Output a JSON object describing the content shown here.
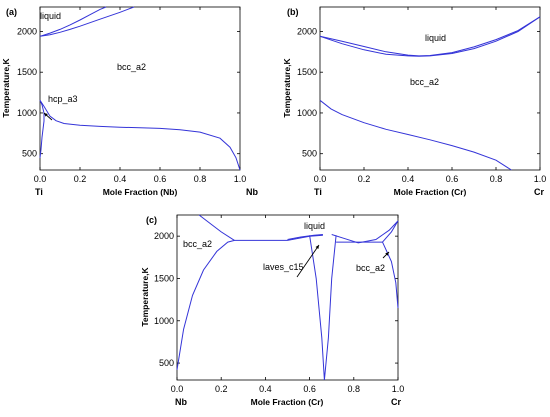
{
  "chart_data": [
    {
      "panel": "(a)",
      "type": "line",
      "xlabel": "Mole Fraction (Nb)",
      "ylabel": "Temperature,K",
      "xlim": [
        0,
        1.0
      ],
      "ylim": [
        300,
        2300
      ],
      "xticks": [
        "0.0",
        "0.2",
        "0.4",
        "0.6",
        "0.8",
        "1.0"
      ],
      "yticks": [
        "500",
        "1000",
        "1500",
        "2000"
      ],
      "left_element": "Ti",
      "right_element": "Nb",
      "regions": [
        "liquid",
        "bcc_a2",
        "hcp_a3"
      ],
      "series": [
        {
          "values": [
            [
              0,
              1940
            ],
            [
              0.05,
              1980
            ],
            [
              0.1,
              2025
            ],
            [
              0.15,
              2080
            ],
            [
              0.2,
              2140
            ],
            [
              0.25,
              2205
            ],
            [
              0.3,
              2270
            ],
            [
              0.33,
              2300
            ]
          ]
        },
        {
          "values": [
            [
              0,
              1940
            ],
            [
              0.05,
              1960
            ],
            [
              0.1,
              1990
            ],
            [
              0.15,
              2025
            ],
            [
              0.2,
              2065
            ],
            [
              0.3,
              2150
            ],
            [
              0.4,
              2235
            ],
            [
              0.47,
              2300
            ]
          ]
        },
        {
          "values": [
            [
              0,
              1155
            ],
            [
              0.02,
              1080
            ],
            [
              0.05,
              960
            ],
            [
              0.08,
              905
            ],
            [
              0.12,
              870
            ],
            [
              0.2,
              850
            ],
            [
              0.3,
              835
            ],
            [
              0.4,
              825
            ],
            [
              0.5,
              818
            ],
            [
              0.6,
              810
            ],
            [
              0.7,
              795
            ],
            [
              0.8,
              765
            ],
            [
              0.9,
              690
            ],
            [
              0.95,
              580
            ],
            [
              0.98,
              450
            ],
            [
              1.0,
              300
            ]
          ]
        },
        {
          "values": [
            [
              0,
              1155
            ],
            [
              0.01,
              1100
            ],
            [
              0.02,
              1000
            ],
            [
              0.02,
              900
            ],
            [
              0.01,
              700
            ],
            [
              0.005,
              550
            ],
            [
              0,
              450
            ]
          ]
        }
      ]
    },
    {
      "panel": "(b)",
      "type": "line",
      "xlabel": "Mole Fraction (Cr)",
      "ylabel": "Temperature,K",
      "xlim": [
        0,
        1.0
      ],
      "ylim": [
        300,
        2300
      ],
      "xticks": [
        "0.0",
        "0.2",
        "0.4",
        "0.6",
        "0.8",
        "1.0"
      ],
      "yticks": [
        "500",
        "1000",
        "1500",
        "2000"
      ],
      "left_element": "Ti",
      "right_element": "Cr",
      "regions": [
        "liquid",
        "bcc_a2"
      ],
      "series": [
        {
          "values": [
            [
              0,
              1940
            ],
            [
              0.1,
              1880
            ],
            [
              0.2,
              1815
            ],
            [
              0.3,
              1750
            ],
            [
              0.4,
              1710
            ],
            [
              0.45,
              1700
            ],
            [
              0.5,
              1705
            ],
            [
              0.6,
              1740
            ],
            [
              0.7,
              1810
            ],
            [
              0.8,
              1900
            ],
            [
              0.9,
              2010
            ],
            [
              1.0,
              2180
            ]
          ]
        },
        {
          "values": [
            [
              0,
              1940
            ],
            [
              0.1,
              1850
            ],
            [
              0.2,
              1775
            ],
            [
              0.3,
              1720
            ],
            [
              0.4,
              1700
            ],
            [
              0.45,
              1695
            ],
            [
              0.5,
              1700
            ],
            [
              0.6,
              1730
            ],
            [
              0.7,
              1790
            ],
            [
              0.8,
              1880
            ],
            [
              0.9,
              2000
            ],
            [
              1.0,
              2180
            ]
          ]
        },
        {
          "values": [
            [
              0,
              1155
            ],
            [
              0.05,
              1050
            ],
            [
              0.1,
              980
            ],
            [
              0.2,
              880
            ],
            [
              0.3,
              800
            ],
            [
              0.4,
              735
            ],
            [
              0.5,
              670
            ],
            [
              0.6,
              600
            ],
            [
              0.7,
              520
            ],
            [
              0.8,
              420
            ],
            [
              0.87,
              300
            ]
          ]
        }
      ]
    },
    {
      "panel": "(c)",
      "type": "line",
      "xlabel": "Mole Fraction (Cr)",
      "ylabel": "Temperature,K",
      "xlim": [
        0,
        1.0
      ],
      "ylim": [
        300,
        2250
      ],
      "xticks": [
        "0.0",
        "0.2",
        "0.4",
        "0.6",
        "0.8",
        "1.0"
      ],
      "yticks": [
        "500",
        "1000",
        "1500",
        "2000"
      ],
      "left_element": "Nb",
      "right_element": "Cr",
      "regions": [
        "liquid",
        "bcc_a2",
        "laves_c15",
        "bcc_a2"
      ],
      "series": [
        {
          "values": [
            [
              0.1,
              2250
            ],
            [
              0.15,
              2150
            ],
            [
              0.2,
              2050
            ],
            [
              0.26,
              1950
            ]
          ]
        },
        {
          "values": [
            [
              0.5,
              1960
            ],
            [
              0.56,
              1990
            ],
            [
              0.62,
              2010
            ],
            [
              0.66,
              2020
            ]
          ]
        },
        {
          "values": [
            [
              0.7,
              2020
            ],
            [
              0.76,
              1970
            ],
            [
              0.82,
              1920
            ],
            [
              0.9,
              1960
            ],
            [
              0.96,
              2070
            ],
            [
              1.0,
              2180
            ]
          ]
        },
        {
          "values": [
            [
              0,
              420
            ],
            [
              0.03,
              900
            ],
            [
              0.07,
              1300
            ],
            [
              0.12,
              1600
            ],
            [
              0.18,
              1820
            ],
            [
              0.23,
              1930
            ],
            [
              0.26,
              1950
            ]
          ]
        },
        {
          "values": [
            [
              0.26,
              1950
            ],
            [
              0.5,
              1950
            ]
          ]
        },
        {
          "values": [
            [
              0.5,
              1950
            ],
            [
              0.6,
              2000
            ],
            [
              0.66,
              2010
            ]
          ]
        },
        {
          "values": [
            [
              0.6,
              2010
            ],
            [
              0.63,
              1500
            ],
            [
              0.655,
              800
            ],
            [
              0.667,
              300
            ]
          ]
        },
        {
          "values": [
            [
              0.72,
              2010
            ],
            [
              0.7,
              1500
            ],
            [
              0.685,
              800
            ],
            [
              0.667,
              300
            ]
          ]
        },
        {
          "values": [
            [
              0.72,
              1930
            ],
            [
              0.93,
              1930
            ]
          ]
        },
        {
          "values": [
            [
              0.93,
              1930
            ],
            [
              0.97,
              2050
            ],
            [
              1.0,
              2180
            ]
          ]
        },
        {
          "values": [
            [
              0.93,
              1930
            ],
            [
              0.97,
              1700
            ],
            [
              0.99,
              1450
            ],
            [
              1.0,
              1150
            ]
          ]
        }
      ]
    }
  ]
}
